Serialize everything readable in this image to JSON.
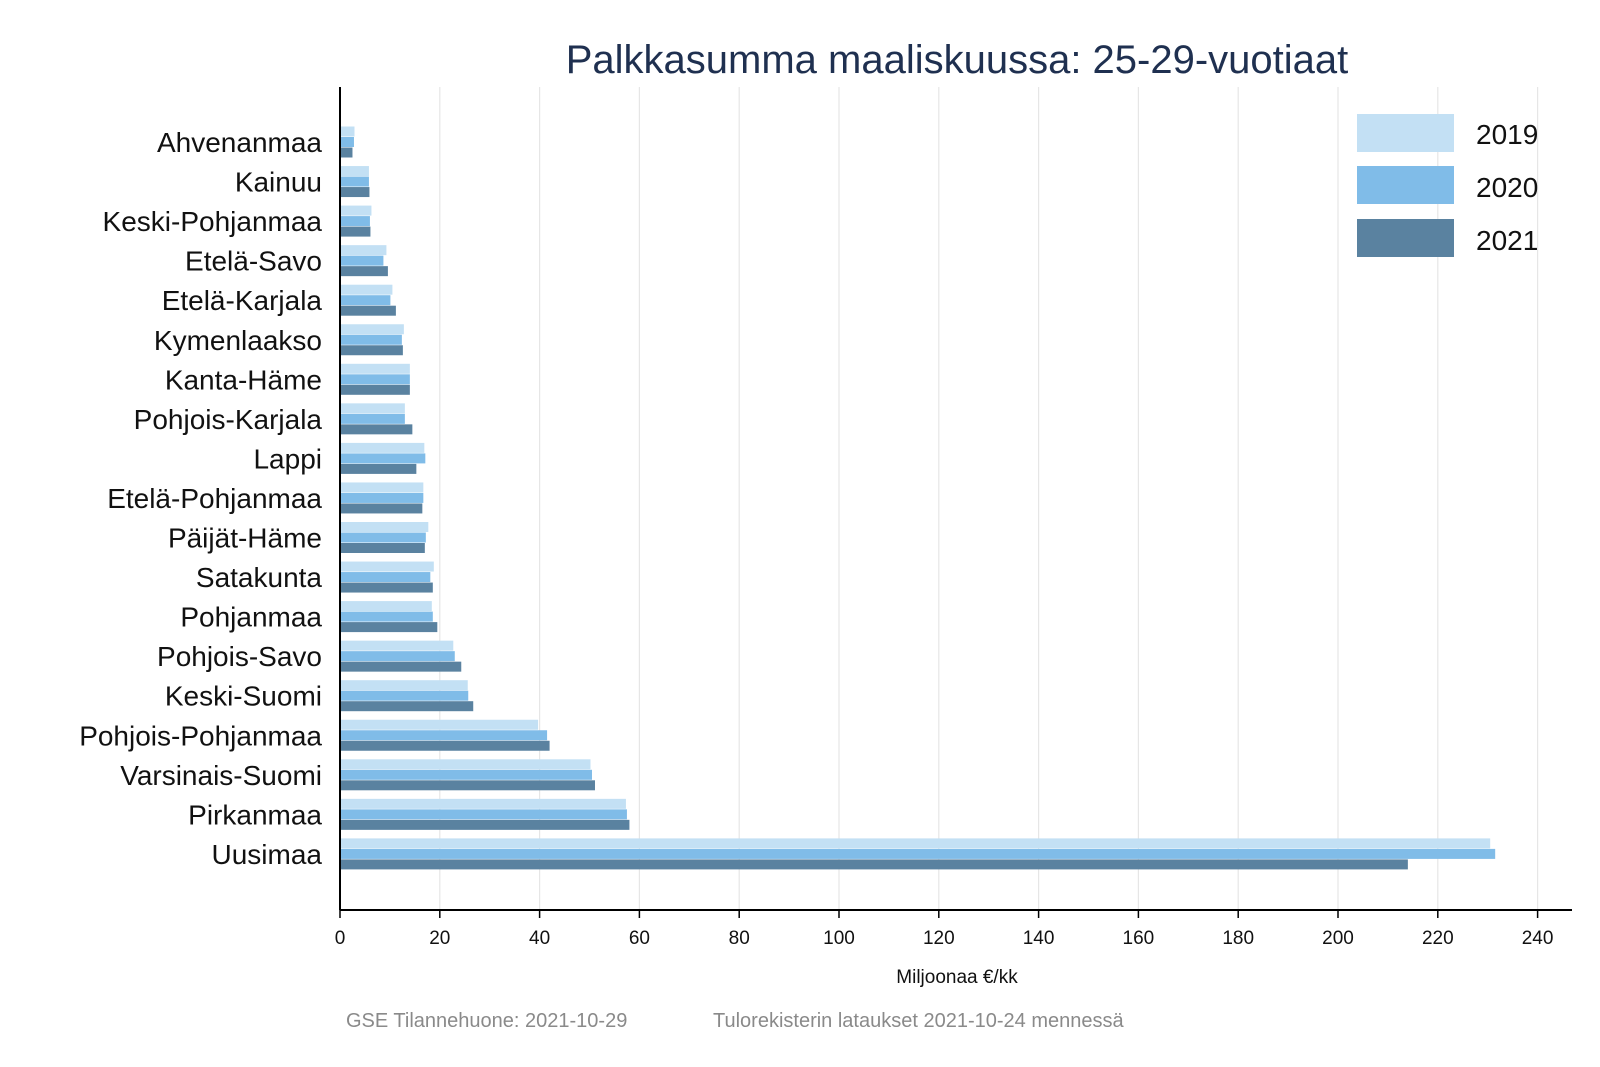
{
  "chart_data": {
    "type": "bar",
    "orientation": "horizontal",
    "title": "Palkkasumma maaliskuussa: 25-29-vuotiaat",
    "xlabel": "Miljoonaa €/kk",
    "ylabel": "",
    "xlim": [
      0,
      245
    ],
    "xticks": [
      0,
      20,
      40,
      60,
      80,
      100,
      120,
      140,
      160,
      180,
      200,
      220,
      240
    ],
    "grid": "vertical",
    "legend_position": "top-right",
    "categories": [
      "Ahvenanmaa",
      "Kainuu",
      "Keski-Pohjanmaa",
      "Etelä-Savo",
      "Etelä-Karjala",
      "Kymenlaakso",
      "Kanta-Häme",
      "Pohjois-Karjala",
      "Lappi",
      "Etelä-Pohjanmaa",
      "Päijät-Häme",
      "Satakunta",
      "Pohjanmaa",
      "Pohjois-Savo",
      "Keski-Suomi",
      "Pohjois-Pohjanmaa",
      "Varsinais-Suomi",
      "Pirkanmaa",
      "Uusimaa"
    ],
    "series": [
      {
        "name": "2019",
        "color": "#c3e0f4",
        "values": [
          2.9,
          5.8,
          6.3,
          9.3,
          10.5,
          12.8,
          14.0,
          13.0,
          16.9,
          16.7,
          17.7,
          18.8,
          18.4,
          22.7,
          25.6,
          39.7,
          50.2,
          57.3,
          230.5
        ]
      },
      {
        "name": "2020",
        "color": "#80bce8",
        "values": [
          2.8,
          5.8,
          6.0,
          8.7,
          10.1,
          12.4,
          14.0,
          13.0,
          17.1,
          16.7,
          17.2,
          18.1,
          18.6,
          23.0,
          25.7,
          41.5,
          50.5,
          57.5,
          231.5
        ]
      },
      {
        "name": "2021",
        "color": "#5a82a0",
        "values": [
          2.5,
          5.9,
          6.1,
          9.6,
          11.2,
          12.6,
          14.0,
          14.5,
          15.3,
          16.5,
          17.0,
          18.6,
          19.5,
          24.3,
          26.7,
          42.0,
          51.1,
          58.0,
          214.0
        ]
      }
    ]
  },
  "footer": {
    "left": "GSE Tilannehuone: 2021-10-29",
    "right": "Tulorekisterin lataukset 2021-10-24 mennessä"
  }
}
